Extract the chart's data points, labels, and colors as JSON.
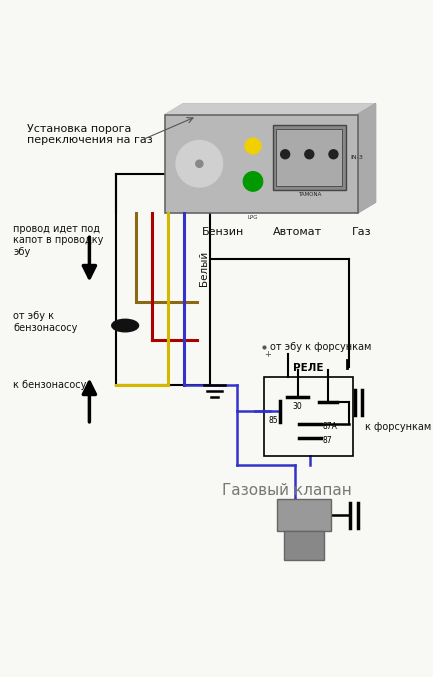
{
  "bg_color": "#f8f8f4",
  "wire_colors": {
    "brown": "#8B6914",
    "red": "#aa0000",
    "yellow": "#d4b800",
    "blue": "#3333cc",
    "black": "#111111"
  },
  "texts": {
    "ustanovka": "Установка порога\nпереключения на газ",
    "provod": "провод идет под\nкапот в проводку\nэбу",
    "ot_ebu_benz": "от эбу к\nбензонасосу",
    "k_benz": "к бензонасосу",
    "beliy": "Белый",
    "ot_ebu_fors": "от эбу к форсункам",
    "rele": "РЕЛЕ",
    "k_fors": "к форсункам",
    "gaz_klapan": "Газовый клапан",
    "benzin": "Бензин",
    "avtomat": "Автомат",
    "gaz": "Газ",
    "lpg": "LPG",
    "tamona": "TAMONA",
    "in3": "IN-3",
    "pin30": "30",
    "pin85": "85",
    "pin87a": "87A",
    "pin87": "87"
  }
}
